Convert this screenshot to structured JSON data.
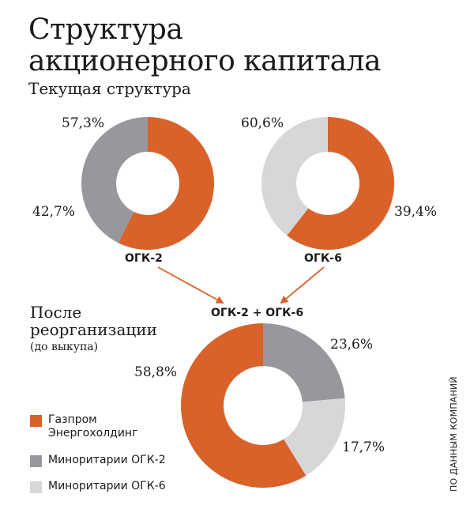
{
  "header": {
    "title_line1": "Структура",
    "title_line2": "акционерного капитала",
    "subtitle": "Текущая структура"
  },
  "after": {
    "title_line1": "После",
    "title_line2": "реорганизации",
    "note": "(до выкупа)"
  },
  "source": "ПО ДАННЫМ КОМПАНИЙ",
  "colors": {
    "orange": "#d8622a",
    "dark_gray": "#97989c",
    "light_gray": "#d6d7d9"
  },
  "legend": [
    {
      "label": "Газпром Энергохолдинг",
      "color": "#d8622a"
    },
    {
      "label": "Миноритарии ОГК-2",
      "color": "#97989c"
    },
    {
      "label": "Миноритарии ОГК-6",
      "color": "#d6d7d9"
    }
  ],
  "chart_data": [
    {
      "type": "pie",
      "title": "ОГК-2",
      "slices": [
        {
          "name": "Газпром Энергохолдинг",
          "value": 57.3,
          "label": "57,3%",
          "color": "#d8622a"
        },
        {
          "name": "Миноритарии ОГК-2",
          "value": 42.7,
          "label": "42,7%",
          "color": "#97989c"
        }
      ]
    },
    {
      "type": "pie",
      "title": "ОГК-6",
      "slices": [
        {
          "name": "Газпром Энергохолдинг",
          "value": 60.6,
          "label": "60,6%",
          "color": "#d8622a"
        },
        {
          "name": "Миноритарии ОГК-6",
          "value": 39.4,
          "label": "39,4%",
          "color": "#d6d7d9"
        }
      ]
    },
    {
      "type": "pie",
      "title": "ОГК-2 + ОГК-6",
      "slices": [
        {
          "name": "Миноритарии ОГК-2",
          "value": 23.6,
          "label": "23,6%",
          "color": "#97989c"
        },
        {
          "name": "Миноритарии ОГК-6",
          "value": 17.7,
          "label": "17,7%",
          "color": "#d6d7d9"
        },
        {
          "name": "Газпром Энергохолдинг",
          "value": 58.8,
          "label": "58,8%",
          "color": "#d8622a"
        }
      ]
    }
  ]
}
